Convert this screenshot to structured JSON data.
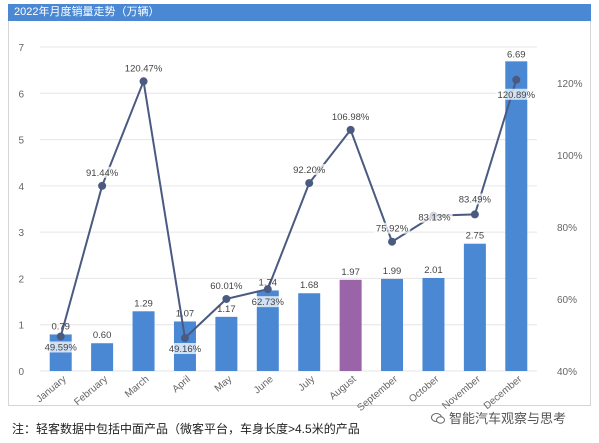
{
  "title": "2022年月度销量走势（万辆）",
  "footnote": "注：轻客数据中包括中面产品（微客平台，车身长度>4.5米的产品",
  "watermark": "智能汽车观察与思考",
  "colors": {
    "title_bg": "#4a88d4",
    "bar": "#4a88d4",
    "bar_highlight": "#9a65a8",
    "line": "#4a5a80",
    "grid": "#e6e6e6",
    "axis_text": "#666666",
    "label_text": "#444444"
  },
  "chart_data": {
    "type": "bar",
    "categories": [
      "January",
      "February",
      "March",
      "April",
      "May",
      "June",
      "July",
      "August",
      "September",
      "October",
      "November",
      "December"
    ],
    "series": [
      {
        "type": "bar",
        "axis": "left",
        "values": [
          0.79,
          0.6,
          1.29,
          1.07,
          1.17,
          1.74,
          1.68,
          1.97,
          1.99,
          2.01,
          2.75,
          6.69
        ],
        "labels": [
          "0.79",
          "0.60",
          "1.29",
          "1.07",
          "1.17",
          "1.74",
          "1.68",
          "1.97",
          "1.99",
          "2.01",
          "2.75",
          "6.69"
        ],
        "highlight_index": 7
      },
      {
        "type": "line",
        "axis": "right",
        "values": [
          49.59,
          91.44,
          120.47,
          49.16,
          60.01,
          62.73,
          92.2,
          106.98,
          75.92,
          83.13,
          83.49,
          120.89
        ],
        "labels": [
          "49.59%",
          "91.44%",
          "120.47%",
          "49.16%",
          "60.01%",
          "62.73%",
          "92.20%",
          "106.98%",
          "75.92%",
          "83.13%",
          "83.49%",
          "120.89%"
        ]
      }
    ],
    "y_left": {
      "range": [
        0,
        7
      ],
      "ticks": [
        "0",
        "1",
        "2",
        "3",
        "4",
        "5",
        "6",
        "7"
      ]
    },
    "y_right": {
      "range": [
        40,
        130
      ],
      "tick_values": [
        40,
        60,
        80,
        100,
        120
      ],
      "ticks": [
        "40%",
        "60%",
        "80%",
        "100%",
        "120%"
      ]
    },
    "grid": true
  }
}
